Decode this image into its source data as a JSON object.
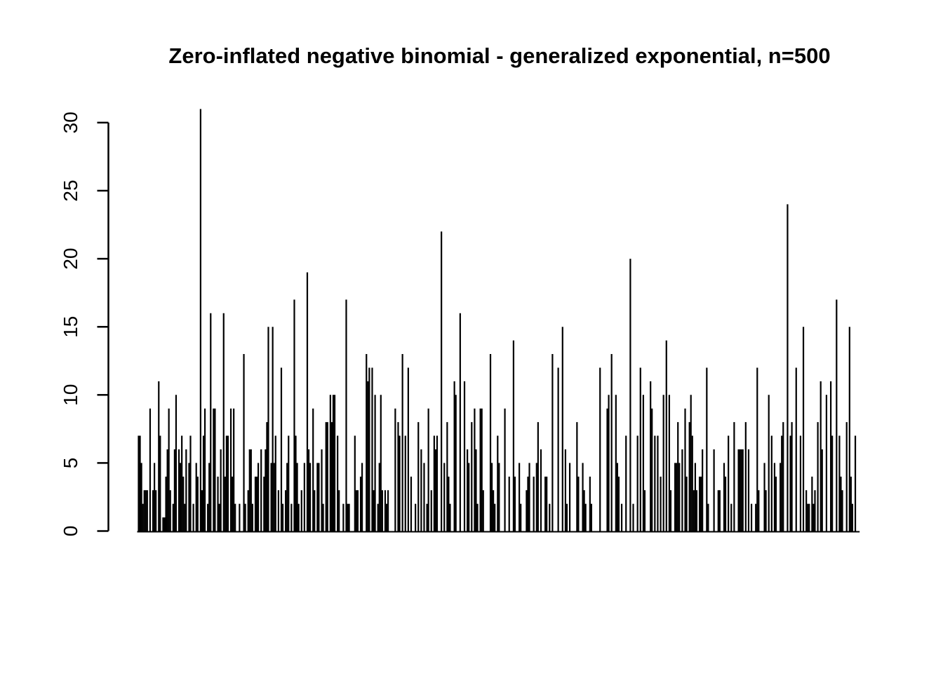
{
  "figure": {
    "background_color": "#ffffff",
    "foreground_color": "#000000"
  },
  "chart_data": {
    "type": "bar",
    "subtype": "spike-plot",
    "title": "Zero-inflated negative binomial - generalized exponential, n=500",
    "n": 500,
    "xlabel": "",
    "ylabel": "",
    "x_axis_shown": false,
    "grid": false,
    "legend": "none",
    "yticks": [
      0,
      5,
      10,
      15,
      20,
      25,
      30
    ],
    "ylim": [
      0,
      31
    ],
    "bar_color": "#000000",
    "axis_color": "#000000",
    "values": [
      7,
      7,
      5,
      2,
      3,
      3,
      3,
      0,
      9,
      0,
      3,
      5,
      3,
      0,
      11,
      7,
      0,
      1,
      1,
      4,
      6,
      9,
      3,
      0,
      2,
      6,
      10,
      0,
      6,
      5,
      7,
      4,
      2,
      6,
      0,
      5,
      7,
      0,
      2,
      0,
      5,
      4,
      0,
      31,
      3,
      7,
      9,
      0,
      2,
      5,
      16,
      0,
      9,
      9,
      0,
      4,
      2,
      6,
      0,
      16,
      4,
      7,
      7,
      0,
      9,
      4,
      9,
      2,
      0,
      0,
      2,
      0,
      0,
      13,
      2,
      0,
      3,
      6,
      6,
      2,
      0,
      4,
      4,
      5,
      0,
      6,
      0,
      4,
      6,
      8,
      15,
      0,
      5,
      15,
      5,
      7,
      0,
      3,
      0,
      12,
      2,
      0,
      3,
      5,
      7,
      0,
      2,
      0,
      17,
      7,
      5,
      2,
      0,
      3,
      0,
      5,
      0,
      19,
      6,
      5,
      0,
      9,
      3,
      0,
      5,
      5,
      0,
      6,
      2,
      0,
      8,
      8,
      0,
      10,
      8,
      10,
      10,
      0,
      7,
      3,
      0,
      0,
      2,
      0,
      17,
      2,
      2,
      0,
      0,
      0,
      7,
      3,
      3,
      0,
      4,
      5,
      0,
      0,
      13,
      11,
      12,
      0,
      12,
      3,
      10,
      0,
      2,
      5,
      10,
      3,
      0,
      3,
      2,
      3,
      0,
      0,
      0,
      0,
      9,
      0,
      8,
      7,
      0,
      13,
      0,
      7,
      0,
      12,
      0,
      4,
      0,
      0,
      2,
      0,
      8,
      0,
      6,
      0,
      5,
      0,
      2,
      9,
      0,
      3,
      0,
      7,
      6,
      7,
      0,
      0,
      22,
      0,
      5,
      0,
      8,
      4,
      2,
      0,
      0,
      11,
      10,
      0,
      0,
      16,
      0,
      0,
      11,
      0,
      6,
      5,
      0,
      8,
      0,
      9,
      6,
      2,
      0,
      9,
      9,
      3,
      0,
      0,
      0,
      0,
      13,
      5,
      3,
      2,
      0,
      7,
      5,
      0,
      0,
      0,
      9,
      0,
      0,
      4,
      0,
      0,
      14,
      4,
      0,
      0,
      5,
      2,
      0,
      0,
      0,
      3,
      4,
      5,
      0,
      0,
      4,
      0,
      5,
      8,
      0,
      6,
      0,
      0,
      4,
      4,
      0,
      2,
      0,
      13,
      0,
      0,
      0,
      12,
      0,
      0,
      15,
      0,
      6,
      2,
      0,
      5,
      0,
      0,
      0,
      0,
      8,
      4,
      0,
      0,
      5,
      3,
      2,
      0,
      0,
      4,
      2,
      0,
      0,
      0,
      0,
      0,
      12,
      0,
      0,
      0,
      0,
      9,
      10,
      0,
      13,
      0,
      0,
      10,
      5,
      4,
      0,
      2,
      0,
      0,
      7,
      0,
      0,
      20,
      0,
      2,
      0,
      0,
      7,
      0,
      12,
      0,
      10,
      3,
      0,
      0,
      0,
      11,
      9,
      0,
      7,
      0,
      7,
      0,
      4,
      0,
      10,
      0,
      14,
      0,
      10,
      3,
      0,
      0,
      5,
      5,
      8,
      5,
      0,
      6,
      0,
      9,
      4,
      0,
      8,
      10,
      7,
      3,
      5,
      3,
      0,
      4,
      4,
      6,
      0,
      0,
      12,
      2,
      0,
      0,
      0,
      6,
      0,
      0,
      3,
      3,
      0,
      0,
      5,
      4,
      0,
      7,
      0,
      2,
      0,
      8,
      0,
      0,
      6,
      6,
      6,
      6,
      0,
      8,
      0,
      6,
      0,
      2,
      0,
      0,
      2,
      12,
      3,
      0,
      0,
      0,
      5,
      3,
      0,
      10,
      0,
      7,
      0,
      5,
      4,
      0,
      0,
      5,
      7,
      8,
      0,
      0,
      24,
      0,
      7,
      8,
      0,
      0,
      12,
      0,
      0,
      7,
      0,
      15,
      0,
      3,
      2,
      2,
      0,
      4,
      2,
      3,
      0,
      8,
      0,
      11,
      6,
      0,
      0,
      10,
      0,
      0,
      11,
      7,
      0,
      0,
      17,
      0,
      7,
      4,
      3,
      0,
      0,
      8,
      0,
      15,
      4,
      2,
      0,
      7,
      0,
      0
    ]
  }
}
